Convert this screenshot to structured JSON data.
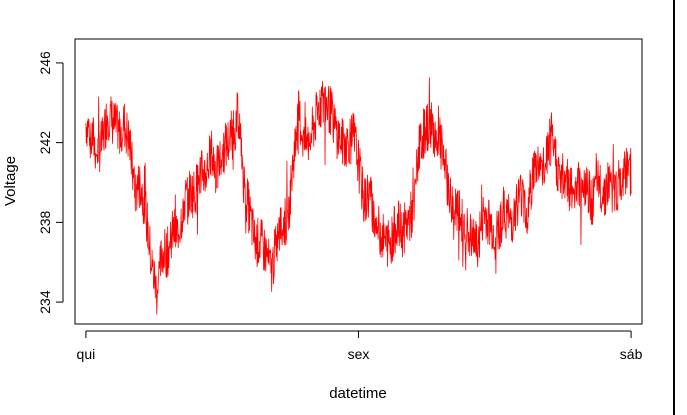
{
  "chart_data": {
    "type": "line",
    "xlabel": "datetime",
    "ylabel": "Voltage",
    "x_ticks": [
      "qui",
      "sex",
      "sáb"
    ],
    "y_ticks": [
      234,
      238,
      242,
      246
    ],
    "xlim_days": [
      -0.04,
      2.04
    ],
    "ylim": [
      232.9,
      247.2
    ],
    "line_color": "#ff0000",
    "series": [
      {
        "x_days": [
          0.0,
          0.02,
          0.04,
          0.06,
          0.08,
          0.1,
          0.12,
          0.14,
          0.16,
          0.18,
          0.2,
          0.22,
          0.24,
          0.26,
          0.28,
          0.3,
          0.32,
          0.34,
          0.36,
          0.38,
          0.4,
          0.42,
          0.44,
          0.46,
          0.48,
          0.5,
          0.52,
          0.54,
          0.56,
          0.58,
          0.6,
          0.62,
          0.64,
          0.66,
          0.68,
          0.7,
          0.72,
          0.74,
          0.76,
          0.78,
          0.8,
          0.82,
          0.84,
          0.86,
          0.88,
          0.9,
          0.92,
          0.94,
          0.96,
          0.98,
          1.0,
          1.02,
          1.04,
          1.06,
          1.08,
          1.1,
          1.12,
          1.14,
          1.16,
          1.18,
          1.2,
          1.22,
          1.24,
          1.26,
          1.28,
          1.3,
          1.32,
          1.34,
          1.36,
          1.38,
          1.4,
          1.42,
          1.44,
          1.46,
          1.48,
          1.5,
          1.52,
          1.54,
          1.56,
          1.58,
          1.6,
          1.62,
          1.64,
          1.66,
          1.68,
          1.7,
          1.72,
          1.74,
          1.76,
          1.78,
          1.8,
          1.82,
          1.84,
          1.86,
          1.88,
          1.9,
          1.92,
          1.94,
          1.96,
          1.98,
          2.0
        ],
        "values": [
          243.0,
          242.5,
          241.5,
          242.0,
          243.5,
          243.0,
          242.5,
          243.0,
          242.0,
          239.5,
          240.0,
          238.5,
          236.0,
          234.5,
          236.5,
          236.5,
          237.5,
          237.5,
          239.0,
          239.5,
          239.5,
          240.5,
          240.5,
          241.5,
          240.5,
          241.5,
          242.0,
          242.5,
          243.5,
          240.0,
          238.5,
          237.0,
          237.0,
          236.5,
          235.5,
          237.0,
          238.0,
          238.0,
          241.0,
          243.5,
          242.0,
          242.0,
          243.0,
          244.0,
          244.0,
          243.5,
          242.5,
          242.0,
          242.0,
          242.5,
          241.0,
          239.0,
          239.5,
          238.0,
          237.5,
          237.0,
          237.0,
          238.0,
          237.5,
          238.0,
          238.5,
          241.5,
          242.5,
          243.0,
          242.5,
          242.0,
          240.5,
          239.0,
          238.5,
          238.0,
          237.5,
          237.0,
          237.0,
          238.5,
          238.0,
          237.5,
          238.0,
          238.5,
          238.0,
          239.0,
          239.5,
          238.5,
          240.5,
          241.0,
          240.5,
          242.0,
          241.5,
          240.0,
          240.5,
          239.5,
          240.0,
          240.0,
          239.5,
          239.0,
          240.0,
          239.5,
          240.0,
          239.5,
          240.0,
          240.5,
          240.5
        ]
      }
    ]
  }
}
